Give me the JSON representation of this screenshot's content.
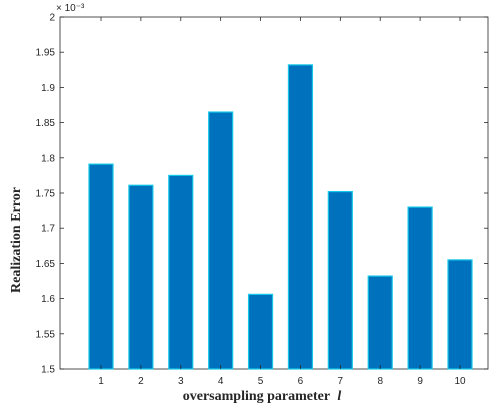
{
  "chart_data": {
    "type": "bar",
    "categories": [
      "1",
      "2",
      "3",
      "4",
      "5",
      "6",
      "7",
      "8",
      "9",
      "10"
    ],
    "values": [
      1.791,
      1.761,
      1.775,
      1.865,
      1.606,
      1.932,
      1.752,
      1.632,
      1.73,
      1.655
    ],
    "value_scale_label": "× 10⁻³",
    "title": "",
    "xlabel": "oversampling parameter",
    "xlabel_symbol": "l",
    "ylabel": "Realization Error",
    "ylim": [
      1.5,
      2.0
    ],
    "yticks": [
      "1.5",
      "1.55",
      "1.6",
      "1.65",
      "1.7",
      "1.75",
      "1.8",
      "1.85",
      "1.9",
      "1.95",
      "2"
    ],
    "grid": false,
    "bar_color": "#0072BD",
    "bar_edge_color": "#14C8E8"
  }
}
